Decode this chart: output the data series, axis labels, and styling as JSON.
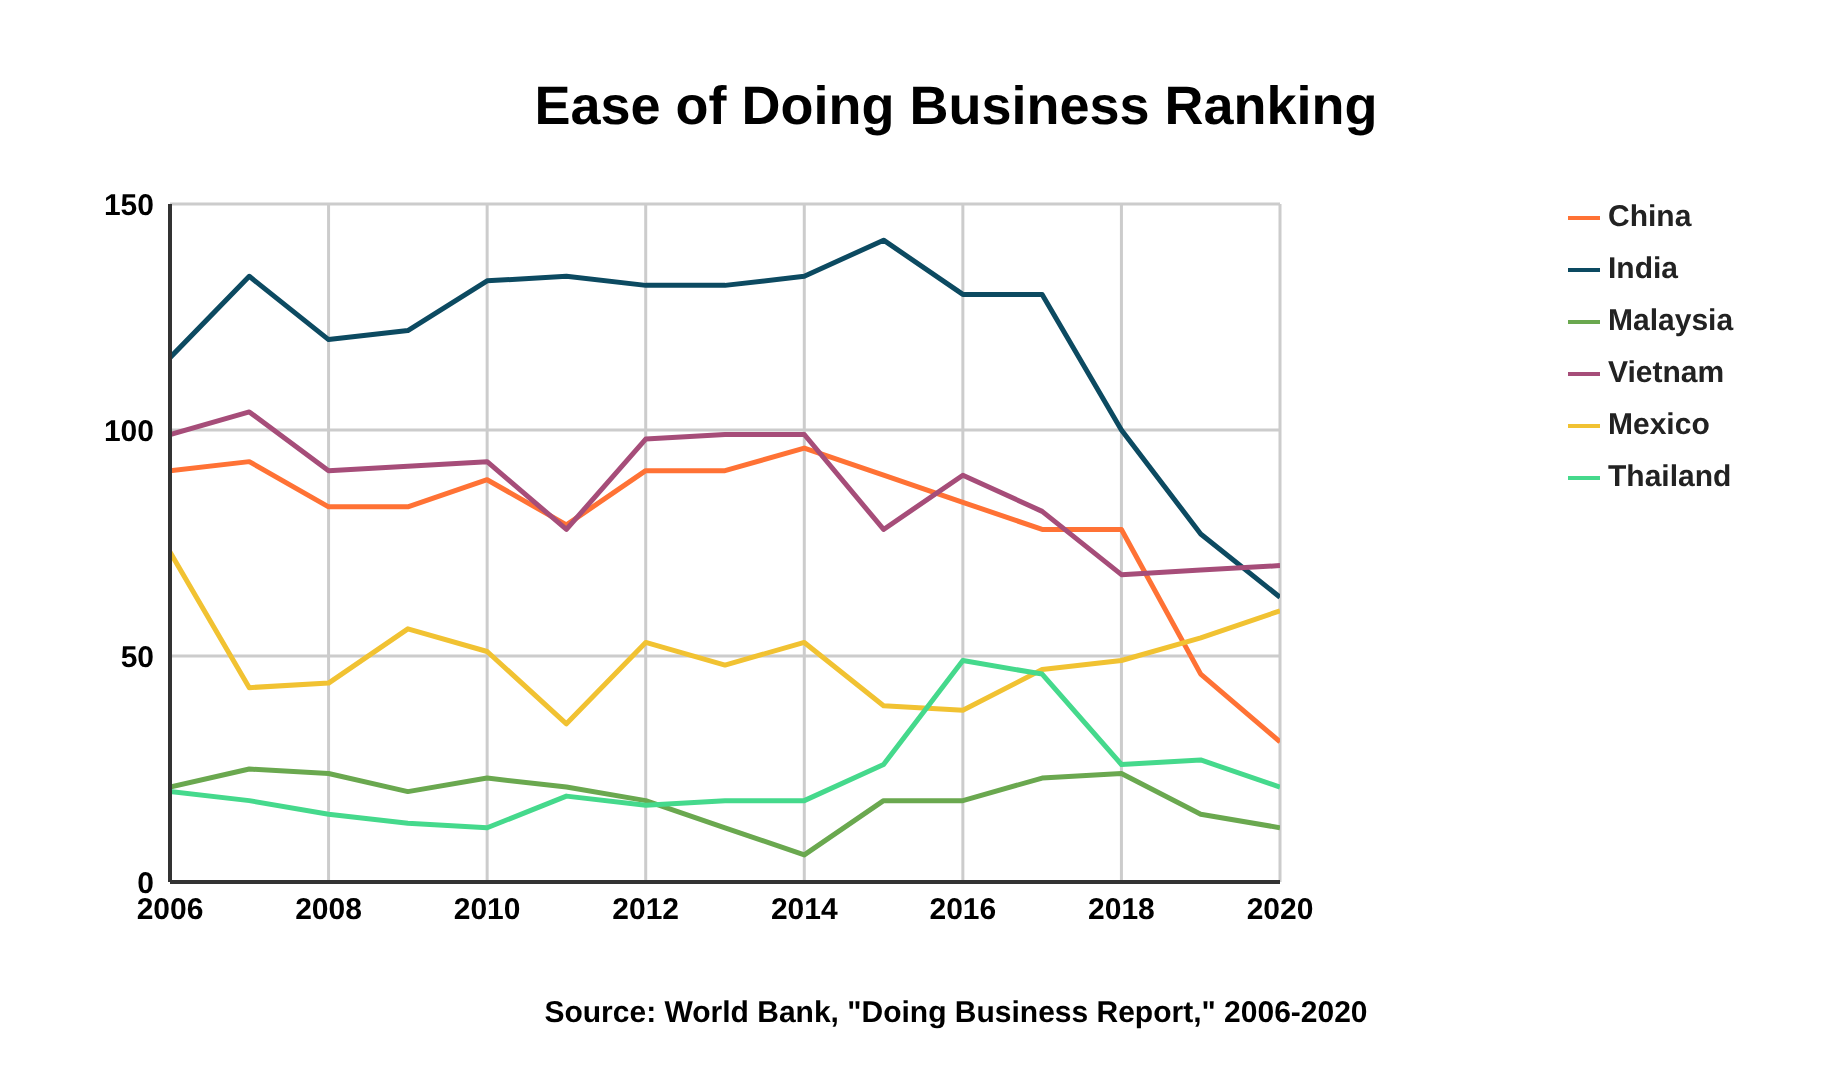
{
  "chart_data": {
    "type": "line",
    "title": "Ease of Doing Business Ranking",
    "annotations": [
      "Source: World Bank, \"Doing Business Report,\" 2006-2020"
    ],
    "x": [
      2006,
      2007,
      2008,
      2009,
      2010,
      2011,
      2012,
      2013,
      2014,
      2015,
      2016,
      2017,
      2018,
      2019,
      2020
    ],
    "xlim": [
      2006,
      2020
    ],
    "xticks": [
      2006,
      2008,
      2010,
      2012,
      2014,
      2016,
      2018,
      2020
    ],
    "ylim": [
      0,
      150
    ],
    "yticks": [
      0,
      50,
      100,
      150
    ],
    "grid": true,
    "legend": "right",
    "marker": "none",
    "line_style": "solid",
    "series": [
      {
        "name": "China",
        "color": "#ff7235",
        "values": [
          91,
          93,
          83,
          83,
          89,
          79,
          91,
          91,
          96,
          90,
          84,
          78,
          78,
          46,
          31
        ]
      },
      {
        "name": "India",
        "color": "#0c4a61",
        "values": [
          116,
          134,
          120,
          122,
          133,
          134,
          132,
          132,
          134,
          142,
          130,
          130,
          100,
          77,
          63
        ]
      },
      {
        "name": "Malaysia",
        "color": "#6aa84f",
        "values": [
          21,
          25,
          24,
          20,
          23,
          21,
          18,
          12,
          6,
          18,
          18,
          23,
          24,
          15,
          12
        ]
      },
      {
        "name": "Vietnam",
        "color": "#a64d79",
        "values": [
          99,
          104,
          91,
          92,
          93,
          78,
          98,
          99,
          99,
          78,
          90,
          82,
          68,
          69,
          70
        ]
      },
      {
        "name": "Mexico",
        "color": "#f1c232",
        "values": [
          73,
          43,
          44,
          56,
          51,
          35,
          53,
          48,
          53,
          39,
          38,
          47,
          49,
          54,
          60
        ]
      },
      {
        "name": "Thailand",
        "color": "#45d98c",
        "values": [
          20,
          18,
          15,
          13,
          12,
          19,
          17,
          18,
          18,
          26,
          49,
          46,
          26,
          27,
          21
        ]
      }
    ]
  }
}
